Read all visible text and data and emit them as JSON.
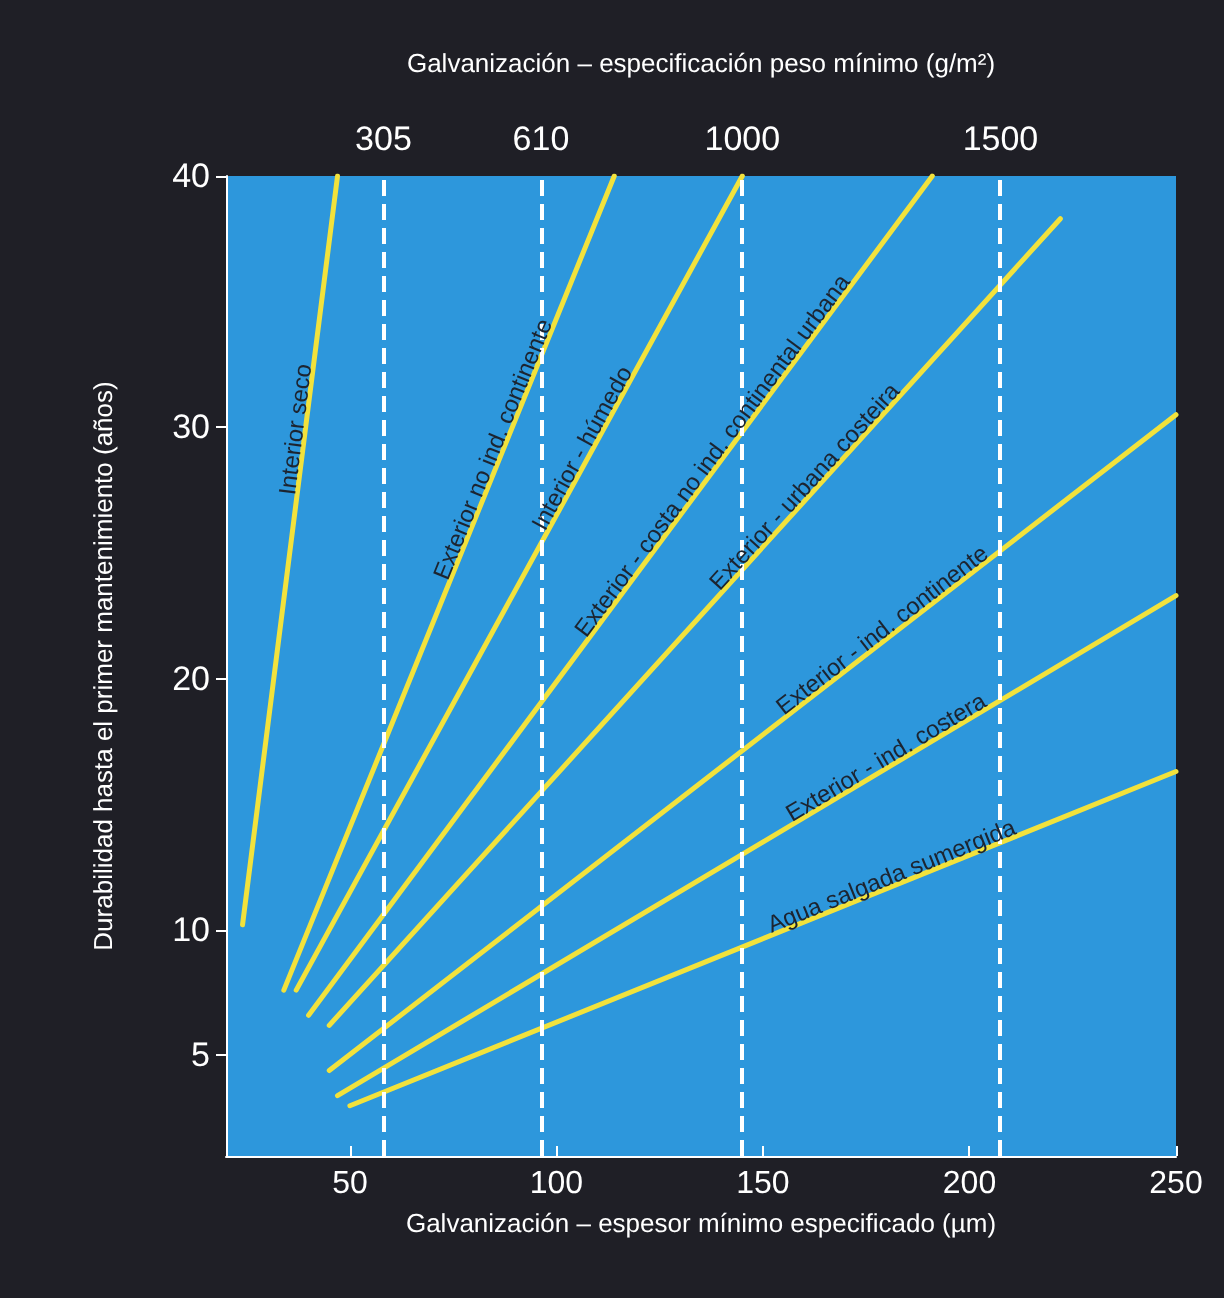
{
  "chart_data": {
    "type": "line",
    "xlabel": "Galvanización – espesor mínimo especificado (µm)",
    "x2label": "Galvanización – especificación peso mínimo (g/m²)",
    "ylabel": "Durabilidad hasta el primer mantenimiento (años)",
    "xlim": [
      20,
      250
    ],
    "xticks": [
      50,
      100,
      150,
      200,
      250
    ],
    "ylim": [
      1,
      40
    ],
    "yticks": [
      5,
      10,
      20,
      30,
      40
    ],
    "grid": false,
    "legend": false,
    "marker": "none",
    "line_style": "solid",
    "series": [
      {
        "name": "Interior seco",
        "color": "#f2e23c",
        "x": [
          24,
          47
        ],
        "values": [
          10.2,
          40
        ]
      },
      {
        "name": "Exterior no ind. continente",
        "color": "#f2e23c",
        "x": [
          34,
          114
        ],
        "values": [
          7.6,
          40
        ]
      },
      {
        "name": "Interior - húmedo",
        "color": "#f2e23c",
        "x": [
          37,
          145
        ],
        "values": [
          7.6,
          40
        ]
      },
      {
        "name": "Exterior - costa no ind. continental urbana",
        "color": "#f2e23c",
        "x": [
          40,
          191
        ],
        "values": [
          6.6,
          40
        ]
      },
      {
        "name": "Exterior - urbana costeira",
        "color": "#f2e23c",
        "x": [
          45,
          222
        ],
        "values": [
          6.2,
          38.3
        ]
      },
      {
        "name": "Exterior - ind. continente",
        "color": "#f2e23c",
        "x": [
          45,
          250
        ],
        "values": [
          4.4,
          30.5
        ]
      },
      {
        "name": "Exterior - ind. costera",
        "color": "#f2e23c",
        "x": [
          47,
          250
        ],
        "values": [
          3.4,
          23.3
        ]
      },
      {
        "name": "Agua salgada sumergida",
        "color": "#f2e23c",
        "x": [
          50,
          250
        ],
        "values": [
          3.0,
          16.3
        ]
      }
    ],
    "x2lim": [
      0,
      1840
    ],
    "x2ticks": [
      305,
      610,
      1000,
      1500
    ],
    "ref_lines": [
      {
        "axis": "x2",
        "value": 305,
        "color": "#ffffff",
        "line_style": "dashed"
      },
      {
        "axis": "x2",
        "value": 610,
        "color": "#ffffff",
        "line_style": "dashed"
      },
      {
        "axis": "x2",
        "value": 1000,
        "color": "#ffffff",
        "line_style": "dashed"
      },
      {
        "axis": "x2",
        "value": 1500,
        "color": "#ffffff",
        "line_style": "dashed"
      }
    ]
  }
}
